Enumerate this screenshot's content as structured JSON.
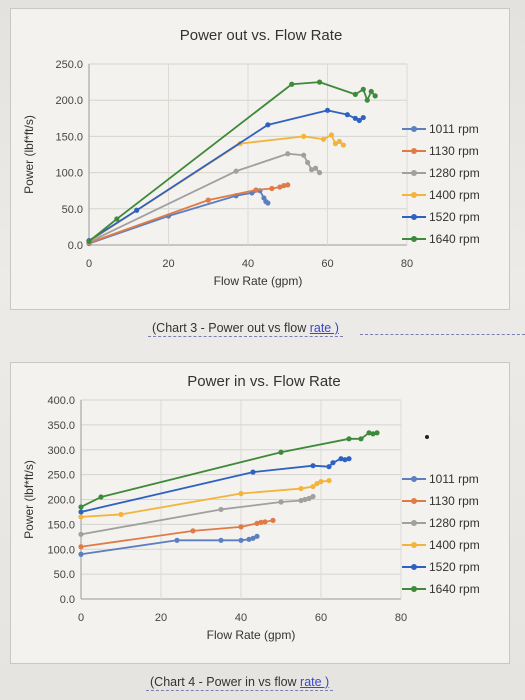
{
  "chart_data": [
    {
      "type": "line",
      "title": "Power out vs. Flow Rate",
      "xlabel": "Flow Rate (gpm)",
      "ylabel": "Power (lbf*ft/s)",
      "xlim": [
        0,
        80
      ],
      "ylim": [
        0,
        250
      ],
      "xticks": [
        "0",
        "20",
        "40",
        "60",
        "80"
      ],
      "yticks": [
        "0.0",
        "50.0",
        "100.0",
        "150.0",
        "200.0",
        "250.0"
      ],
      "legend": "right",
      "grid": true,
      "caption_main": "(Chart 3 - Power out vs flow ",
      "caption_link": "rate )",
      "series": [
        {
          "name": "1011 rpm",
          "color": "#5b7fc0",
          "points": [
            [
              0,
              2
            ],
            [
              20,
              40
            ],
            [
              37,
              68
            ],
            [
              41,
              72
            ],
            [
              43,
              75
            ],
            [
              44,
              65
            ],
            [
              44.5,
              60
            ],
            [
              45,
              58
            ]
          ]
        },
        {
          "name": "1130 rpm",
          "color": "#e07b47",
          "points": [
            [
              0,
              3
            ],
            [
              30,
              62
            ],
            [
              42,
              76
            ],
            [
              46,
              78
            ],
            [
              48,
              80
            ],
            [
              49,
              82
            ],
            [
              50,
              83
            ]
          ]
        },
        {
          "name": "1280 rpm",
          "color": "#a0a0a0",
          "points": [
            [
              0,
              4
            ],
            [
              37,
              102
            ],
            [
              50,
              126
            ],
            [
              54,
              124
            ],
            [
              55,
              114
            ],
            [
              56,
              104
            ],
            [
              57,
              106
            ],
            [
              58,
              100
            ]
          ]
        },
        {
          "name": "1400 rpm",
          "color": "#f2b43a",
          "points": [
            [
              0,
              5
            ],
            [
              38,
              140
            ],
            [
              54,
              150
            ],
            [
              59,
              146
            ],
            [
              61,
              152
            ],
            [
              62,
              140
            ],
            [
              63,
              143
            ],
            [
              64,
              138
            ]
          ]
        },
        {
          "name": "1520 rpm",
          "color": "#2f62c0",
          "points": [
            [
              0,
              6
            ],
            [
              12,
              48
            ],
            [
              45,
              166
            ],
            [
              60,
              186
            ],
            [
              65,
              180
            ],
            [
              67,
              175
            ],
            [
              68,
              172
            ],
            [
              69,
              176
            ]
          ]
        },
        {
          "name": "1640 rpm",
          "color": "#3e8a3a",
          "points": [
            [
              0,
              5
            ],
            [
              7,
              36
            ],
            [
              51,
              222
            ],
            [
              58,
              225
            ],
            [
              67,
              208
            ],
            [
              69,
              215
            ],
            [
              70,
              200
            ],
            [
              71,
              212
            ],
            [
              72,
              206
            ]
          ]
        }
      ]
    },
    {
      "type": "line",
      "title": "Power in vs. Flow Rate",
      "xlabel": "Flow Rate (gpm)",
      "ylabel": "Power (lbf*ft/s)",
      "xlim": [
        0,
        80
      ],
      "ylim": [
        0,
        400
      ],
      "xticks": [
        "0",
        "20",
        "40",
        "60",
        "80"
      ],
      "yticks": [
        "0.0",
        "50.0",
        "100.0",
        "150.0",
        "200.0",
        "250.0",
        "300.0",
        "350.0",
        "400.0"
      ],
      "legend": "right",
      "grid": true,
      "caption_main": "(Chart 4 - Power in vs flow ",
      "caption_link": "rate )",
      "series": [
        {
          "name": "1011 rpm",
          "color": "#5b7fc0",
          "points": [
            [
              0,
              90
            ],
            [
              24,
              118
            ],
            [
              35,
              118
            ],
            [
              40,
              118
            ],
            [
              42,
              120
            ],
            [
              43,
              122
            ],
            [
              44,
              126
            ]
          ]
        },
        {
          "name": "1130 rpm",
          "color": "#e07b47",
          "points": [
            [
              0,
              105
            ],
            [
              28,
              137
            ],
            [
              40,
              145
            ],
            [
              44,
              152
            ],
            [
              45,
              154
            ],
            [
              46,
              155
            ],
            [
              48,
              158
            ]
          ]
        },
        {
          "name": "1280 rpm",
          "color": "#a0a0a0",
          "points": [
            [
              0,
              130
            ],
            [
              35,
              180
            ],
            [
              50,
              195
            ],
            [
              55,
              198
            ],
            [
              56,
              200
            ],
            [
              57,
              202
            ],
            [
              58,
              206
            ]
          ]
        },
        {
          "name": "1400 rpm",
          "color": "#f2b43a",
          "points": [
            [
              0,
              165
            ],
            [
              10,
              170
            ],
            [
              40,
              212
            ],
            [
              55,
              222
            ],
            [
              58,
              226
            ],
            [
              59,
              232
            ],
            [
              60,
              236
            ],
            [
              62,
              238
            ]
          ]
        },
        {
          "name": "1520 rpm",
          "color": "#2f62c0",
          "points": [
            [
              0,
              175
            ],
            [
              43,
              255
            ],
            [
              58,
              268
            ],
            [
              62,
              266
            ],
            [
              63,
              274
            ],
            [
              65,
              282
            ],
            [
              66,
              280
            ],
            [
              67,
              282
            ]
          ]
        },
        {
          "name": "1640 rpm",
          "color": "#3e8a3a",
          "points": [
            [
              0,
              185
            ],
            [
              5,
              205
            ],
            [
              50,
              295
            ],
            [
              67,
              322
            ],
            [
              70,
              322
            ],
            [
              72,
              334
            ],
            [
              73,
              332
            ],
            [
              74,
              334
            ]
          ]
        }
      ]
    }
  ]
}
